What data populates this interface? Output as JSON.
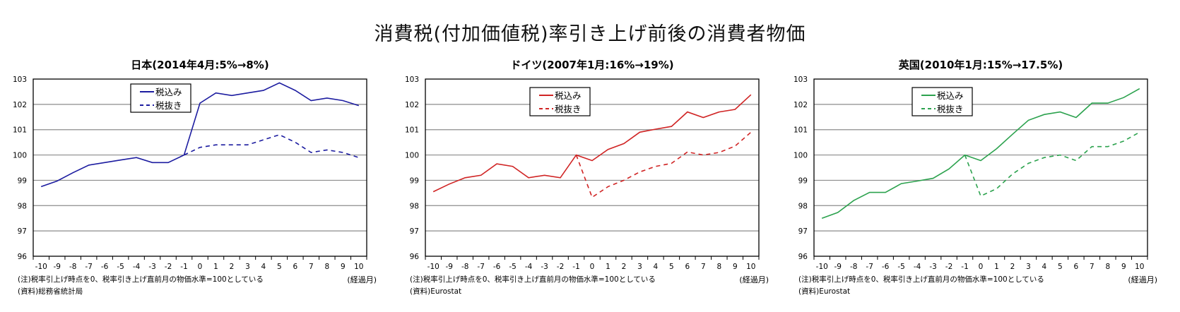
{
  "main_title": "消費税(付加価値税)率引き上げ前後の消費者物価",
  "chart_data": [
    {
      "type": "line",
      "title": "日本(2014年4月:5%→8%)",
      "color": "#1c1ca0",
      "x": [
        -10,
        -9,
        -8,
        -7,
        -6,
        -5,
        -4,
        -3,
        -2,
        -1,
        0,
        1,
        2,
        3,
        4,
        5,
        6,
        7,
        8,
        9,
        10
      ],
      "ylim": [
        96,
        103
      ],
      "yticks": [
        96,
        97,
        98,
        99,
        100,
        101,
        102,
        103
      ],
      "grid": true,
      "legend": "top-center",
      "xunit_label": "(経過月)",
      "note": "(注)税率引上げ時点を0、税率引き上げ直前月の物価水準=100としている",
      "source": "(資料)総務省統計局",
      "series": [
        {
          "name": "税込み",
          "style": "solid",
          "values": [
            98.75,
            98.97,
            99.3,
            99.6,
            99.7,
            99.8,
            99.9,
            99.7,
            99.7,
            100,
            102.05,
            102.45,
            102.35,
            102.45,
            102.55,
            102.85,
            102.55,
            102.15,
            102.25,
            102.15,
            101.95
          ]
        },
        {
          "name": "税抜き",
          "style": "dashed",
          "values": [
            null,
            null,
            null,
            null,
            null,
            null,
            null,
            null,
            null,
            100,
            100.3,
            100.4,
            100.4,
            100.4,
            100.6,
            100.8,
            100.5,
            100.1,
            100.2,
            100.1,
            99.9
          ]
        }
      ]
    },
    {
      "type": "line",
      "title": "ドイツ(2007年1月:16%→19%)",
      "color": "#d02424",
      "x": [
        -10,
        -9,
        -8,
        -7,
        -6,
        -5,
        -4,
        -3,
        -2,
        -1,
        0,
        1,
        2,
        3,
        4,
        5,
        6,
        7,
        8,
        9,
        10
      ],
      "ylim": [
        96,
        103
      ],
      "yticks": [
        96,
        97,
        98,
        99,
        100,
        101,
        102,
        103
      ],
      "grid": true,
      "legend": "top-center",
      "xunit_label": "(経過月)",
      "note": "(注)税率引上げ時点を0、税率引き上げ直前月の物価水準=100としている",
      "source": "(資料)Eurostat",
      "series": [
        {
          "name": "税込み",
          "style": "solid",
          "values": [
            98.55,
            98.85,
            99.1,
            99.2,
            99.65,
            99.55,
            99.1,
            99.2,
            99.1,
            100,
            99.78,
            100.22,
            100.45,
            100.9,
            101.02,
            101.13,
            101.7,
            101.48,
            101.7,
            101.8,
            102.38
          ]
        },
        {
          "name": "税抜き",
          "style": "dashed",
          "values": [
            null,
            null,
            null,
            null,
            null,
            null,
            null,
            null,
            null,
            100,
            98.33,
            98.75,
            99.0,
            99.33,
            99.55,
            99.67,
            100.12,
            100.0,
            100.1,
            100.35,
            100.9
          ]
        }
      ]
    },
    {
      "type": "line",
      "title": "英国(2010年1月:15%→17.5%)",
      "color": "#2ca24e",
      "x": [
        -10,
        -9,
        -8,
        -7,
        -6,
        -5,
        -4,
        -3,
        -2,
        -1,
        0,
        1,
        2,
        3,
        4,
        5,
        6,
        7,
        8,
        9,
        10
      ],
      "ylim": [
        96,
        103
      ],
      "yticks": [
        96,
        97,
        98,
        99,
        100,
        101,
        102,
        103
      ],
      "grid": true,
      "legend": "top-center",
      "xunit_label": "(経過月)",
      "note": "(注)税率引上げ時点を0、税率引き上げ直前月の物価水準=100としている",
      "source": "(資料)Eurostat",
      "series": [
        {
          "name": "税込み",
          "style": "solid",
          "values": [
            97.5,
            97.73,
            98.2,
            98.52,
            98.52,
            98.87,
            98.97,
            99.08,
            99.45,
            100,
            99.78,
            100.25,
            100.82,
            101.37,
            101.6,
            101.7,
            101.48,
            102.05,
            102.05,
            102.27,
            102.62
          ]
        },
        {
          "name": "税抜き",
          "style": "dashed",
          "values": [
            null,
            null,
            null,
            null,
            null,
            null,
            null,
            null,
            null,
            100,
            98.38,
            98.67,
            99.25,
            99.67,
            99.9,
            100.0,
            99.78,
            100.33,
            100.33,
            100.55,
            100.9
          ]
        }
      ]
    }
  ]
}
